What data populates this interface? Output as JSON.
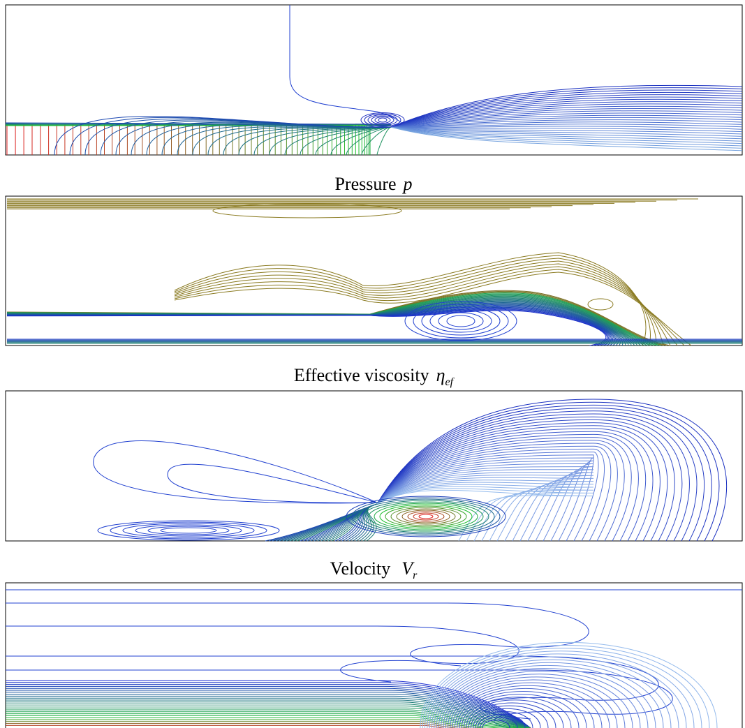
{
  "panels": [
    {
      "caption": {
        "label": "Pressure",
        "symbol": "p"
      }
    },
    {
      "caption": {
        "label": "Effective viscosity",
        "symbol": "η",
        "subscript": "ef"
      }
    },
    {
      "caption": {
        "label": "Velocity",
        "symbol": "V",
        "subscript": "r"
      }
    },
    {}
  ]
}
